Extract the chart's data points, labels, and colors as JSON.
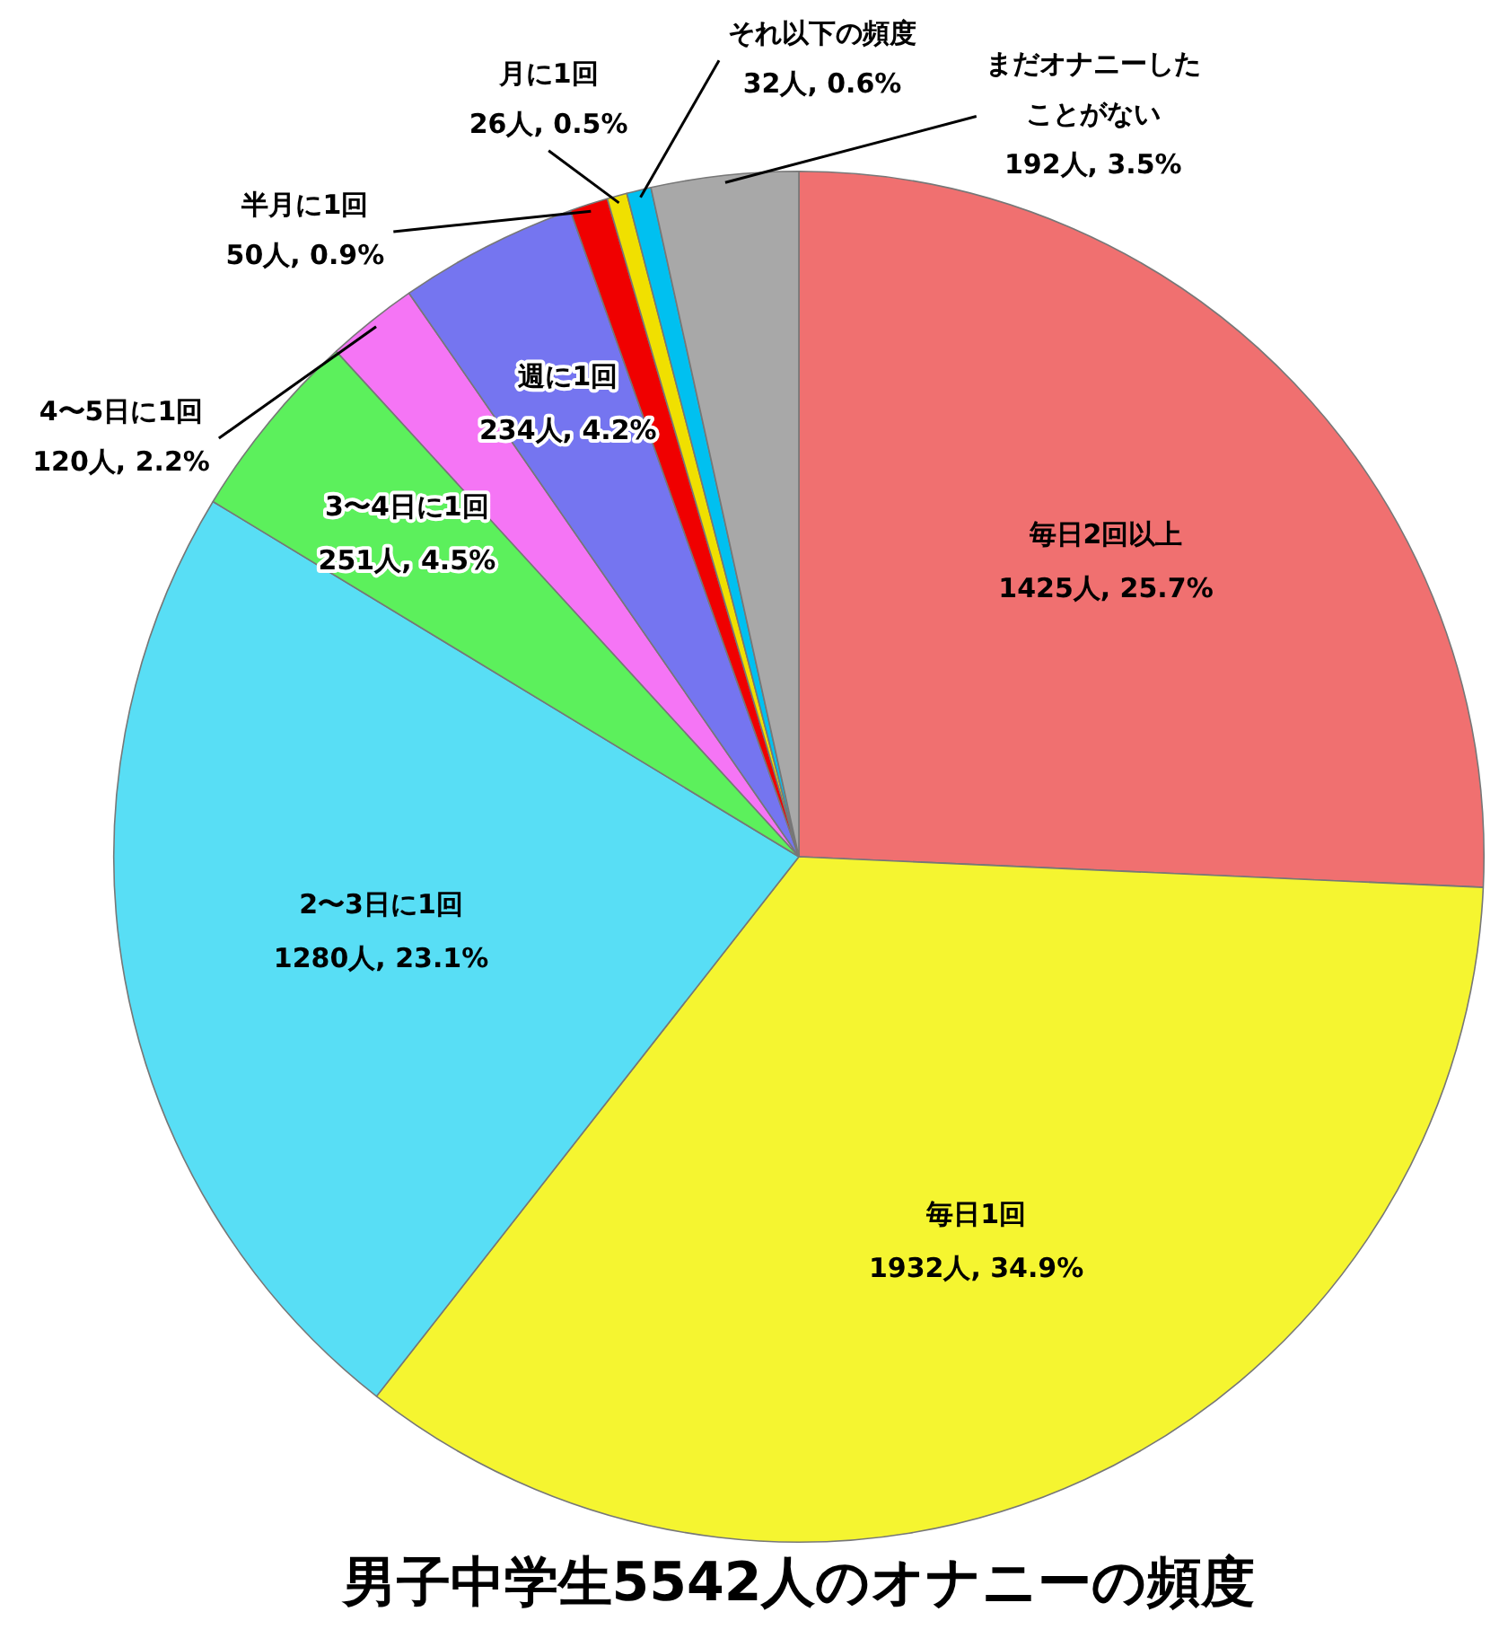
{
  "chart_data": {
    "type": "pie",
    "title": "男子中学生5542人のオナニーの頻度",
    "categories": [
      "毎日2回以上",
      "毎日1回",
      "2〜3日に1回",
      "3〜4日に1回",
      "4〜5日に1回",
      "週に1回",
      "半月に1回",
      "月に1回",
      "それ以下の頻度",
      "まだオナニーしたことがない"
    ],
    "values": [
      1425,
      1932,
      1280,
      251,
      120,
      234,
      50,
      26,
      32,
      192
    ],
    "value_labels": [
      "1425人, 25.7%",
      "1932人, 34.9%",
      "1280人, 23.1%",
      "251人, 4.5%",
      "120人, 2.2%",
      "234人, 4.2%",
      "50人, 0.9%",
      "26人, 0.5%",
      "32人, 0.6%",
      "192人, 3.5%"
    ],
    "colors": [
      "#f07070",
      "#f5f530",
      "#58def5",
      "#5cf05c",
      "#f575f5",
      "#7575f0",
      "#f00000",
      "#f0e000",
      "#00c0f0",
      "#a8a8a8"
    ],
    "legend": false
  }
}
